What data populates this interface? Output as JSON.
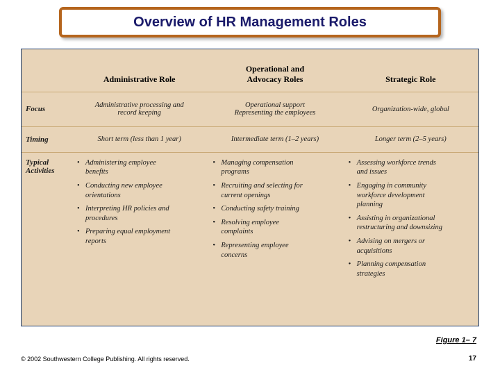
{
  "title": "Overview of HR Management Roles",
  "columns": {
    "c1": "Administrative Role",
    "c2_line1": "Operational and",
    "c2_line2": "Advocacy Roles",
    "c3": "Strategic Role"
  },
  "rowlabels": {
    "focus": "Focus",
    "timing": "Timing",
    "activities_l1": "Typical",
    "activities_l2": "Activities"
  },
  "focus": {
    "c1_l1": "Administrative processing and",
    "c1_l2": "record keeping",
    "c2_l1": "Operational support",
    "c2_l2": "Representing the employees",
    "c3": "Organization-wide, global"
  },
  "timing": {
    "c1": "Short term (less than 1 year)",
    "c2": "Intermediate term (1–2 years)",
    "c3": "Longer term (2–5 years)"
  },
  "act": {
    "c1": {
      "i0l1": "Administering employee",
      "i0l2": "benefits",
      "i1l1": "Conducting new employee",
      "i1l2": "orientations",
      "i2l1": "Interpreting HR policies and",
      "i2l2": "procedures",
      "i3l1": "Preparing equal employment",
      "i3l2": "reports"
    },
    "c2": {
      "i0l1": "Managing compensation",
      "i0l2": "programs",
      "i1l1": "Recruiting and selecting for",
      "i1l2": "current openings",
      "i2": "Conducting safety training",
      "i3l1": "Resolving employee",
      "i3l2": "complaints",
      "i4l1": "Representing employee",
      "i4l2": "concerns"
    },
    "c3": {
      "i0l1": "Assessing workforce trends",
      "i0l2": "and issues",
      "i1l1": "Engaging in community",
      "i1l2": "workforce development",
      "i1l3": "planning",
      "i2l1": "Assisting in organizational",
      "i2l2": "restructuring and downsizing",
      "i3l1": "Advising on mergers or",
      "i3l2": "acquisitions",
      "i4l1": "Planning compensation",
      "i4l2": "strategies"
    }
  },
  "figure_label": "Figure 1– 7",
  "copyright": "© 2002 Southwestern College Publishing. All rights reserved.",
  "pagenum": "17"
}
